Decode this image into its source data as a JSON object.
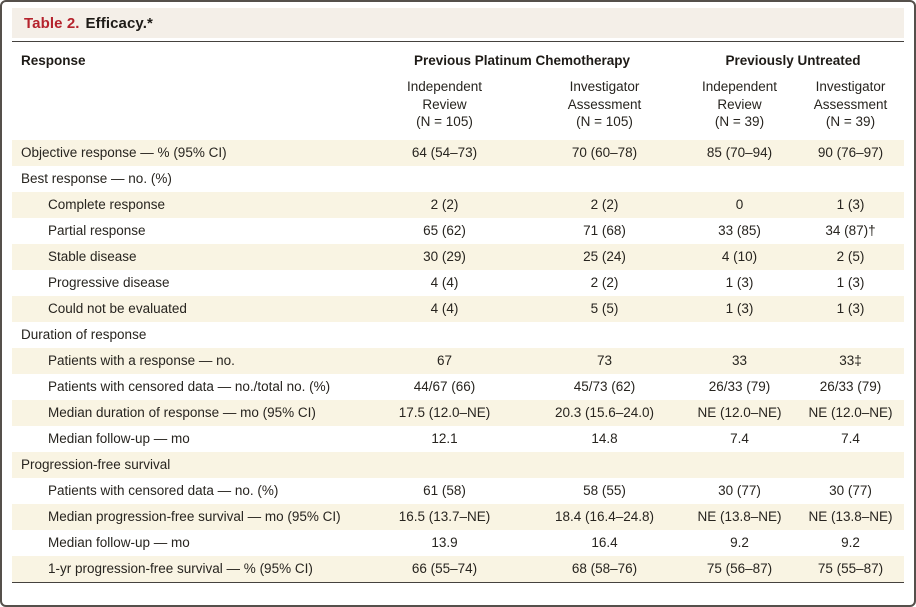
{
  "title": {
    "label": "Table 2.",
    "text": "Efficacy.*"
  },
  "table": {
    "response_header": "Response",
    "groups": [
      {
        "label": "Previous Platinum Chemotherapy"
      },
      {
        "label": "Previously Untreated"
      }
    ],
    "columns": [
      "Independent\nReview\n(N = 105)",
      "Investigator\nAssessment\n(N = 105)",
      "Independent\nReview\n(N = 39)",
      "Investigator\nAssessment\n(N = 39)"
    ],
    "rows": [
      {
        "label": "Objective response — % (95% CI)",
        "indent": 0,
        "cells": [
          "64 (54–73)",
          "70 (60–78)",
          "85 (70–94)",
          "90 (76–97)"
        ]
      },
      {
        "label": "Best response — no. (%)",
        "indent": 0,
        "cells": [
          "",
          "",
          "",
          ""
        ]
      },
      {
        "label": "Complete response",
        "indent": 1,
        "cells": [
          "2 (2)",
          "2 (2)",
          "0",
          "1 (3)"
        ]
      },
      {
        "label": "Partial response",
        "indent": 1,
        "cells": [
          "65 (62)",
          "71 (68)",
          "33 (85)",
          "34 (87)†"
        ]
      },
      {
        "label": "Stable disease",
        "indent": 1,
        "cells": [
          "30 (29)",
          "25 (24)",
          "4 (10)",
          "2 (5)"
        ]
      },
      {
        "label": "Progressive disease",
        "indent": 1,
        "cells": [
          "4 (4)",
          "2 (2)",
          "1 (3)",
          "1 (3)"
        ]
      },
      {
        "label": "Could not be evaluated",
        "indent": 1,
        "cells": [
          "4 (4)",
          "5 (5)",
          "1 (3)",
          "1 (3)"
        ]
      },
      {
        "label": "Duration of response",
        "indent": 0,
        "cells": [
          "",
          "",
          "",
          ""
        ]
      },
      {
        "label": "Patients with a response — no.",
        "indent": 1,
        "cells": [
          "67",
          "73",
          "33",
          "33‡"
        ]
      },
      {
        "label": "Patients with censored data — no./total no. (%)",
        "indent": 1,
        "cells": [
          "44/67 (66)",
          "45/73 (62)",
          "26/33 (79)",
          "26/33 (79)"
        ]
      },
      {
        "label": "Median duration of response — mo (95% CI)",
        "indent": 1,
        "cells": [
          "17.5 (12.0–NE)",
          "20.3 (15.6–24.0)",
          "NE (12.0–NE)",
          "NE (12.0–NE)"
        ]
      },
      {
        "label": "Median follow-up — mo",
        "indent": 1,
        "cells": [
          "12.1",
          "14.8",
          "7.4",
          "7.4"
        ]
      },
      {
        "label": "Progression-free survival",
        "indent": 0,
        "cells": [
          "",
          "",
          "",
          ""
        ]
      },
      {
        "label": "Patients with censored data — no. (%)",
        "indent": 1,
        "cells": [
          "61 (58)",
          "58 (55)",
          "30 (77)",
          "30 (77)"
        ]
      },
      {
        "label": "Median progression-free survival — mo (95% CI)",
        "indent": 1,
        "cells": [
          "16.5 (13.7–NE)",
          "18.4 (16.4–24.8)",
          "NE (13.8–NE)",
          "NE (13.8–NE)"
        ]
      },
      {
        "label": "Median follow-up — mo",
        "indent": 1,
        "cells": [
          "13.9",
          "16.4",
          "9.2",
          "9.2"
        ]
      },
      {
        "label": "1-yr progression-free survival — % (95% CI)",
        "indent": 1,
        "cells": [
          "66 (55–74)",
          "68 (58–76)",
          "75 (56–87)",
          "75 (55–87)"
        ]
      }
    ]
  },
  "colors": {
    "accent_red": "#b5232d",
    "stripe": "#f9f4e3",
    "title_bar_bg": "#f4efe8",
    "rule": "#45423e"
  }
}
